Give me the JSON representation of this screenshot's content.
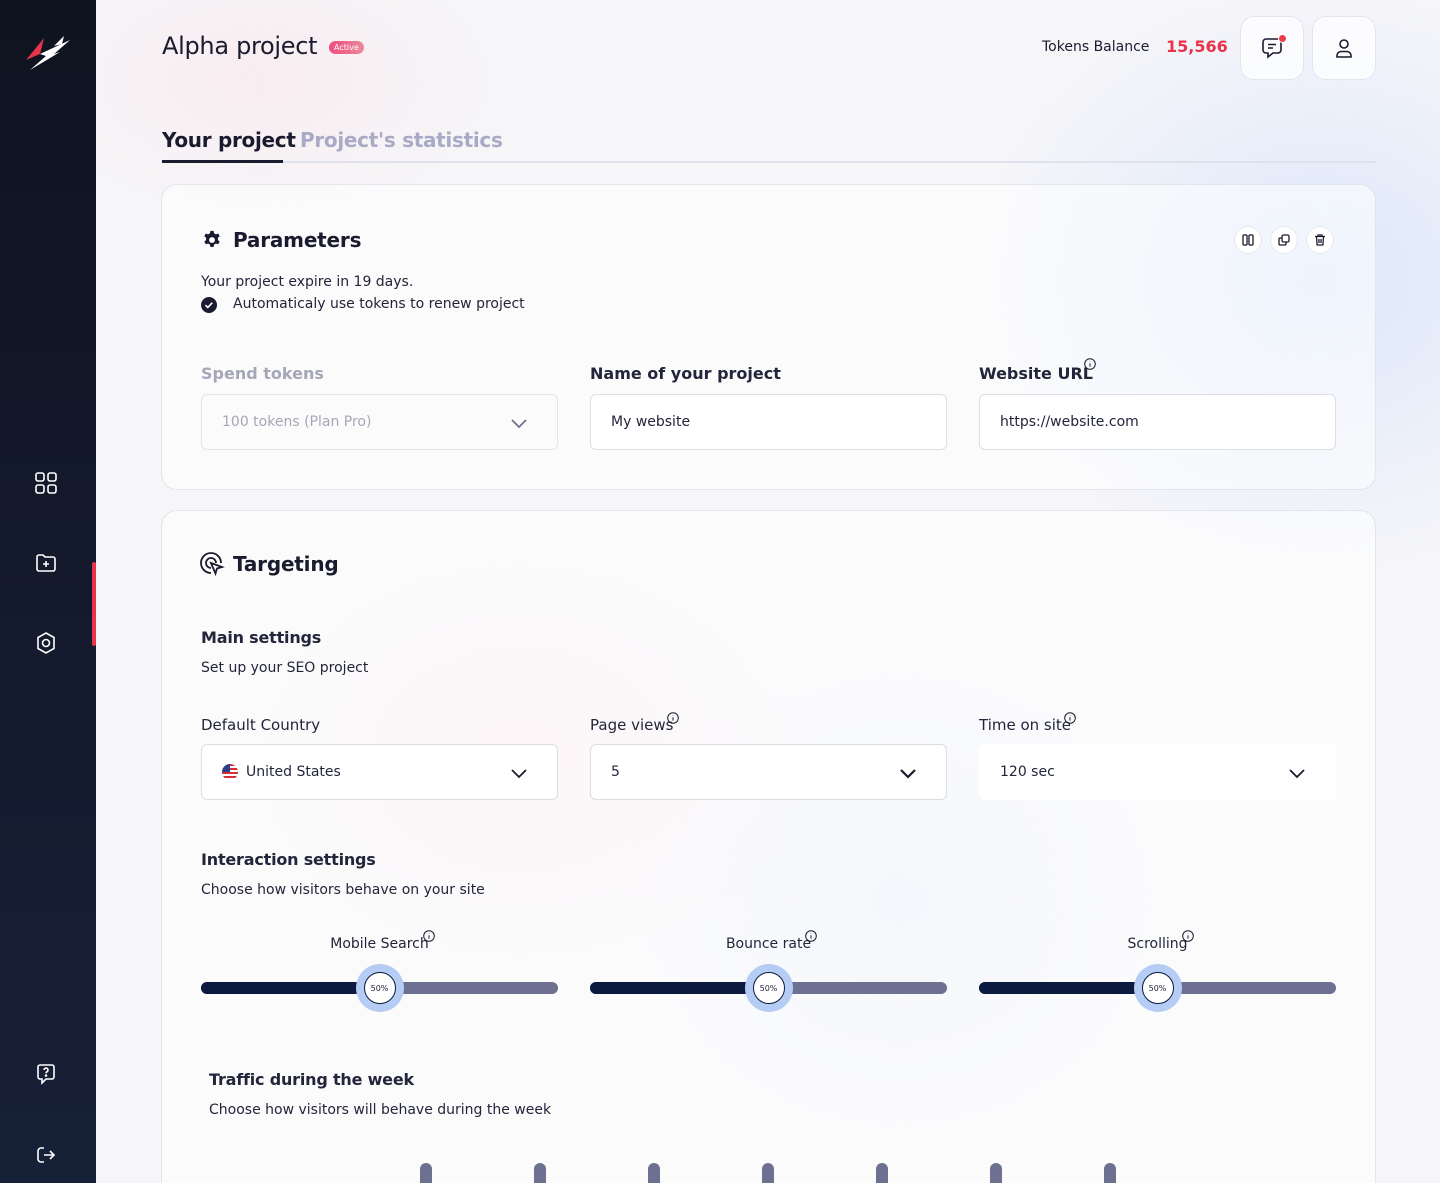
{
  "header": {
    "title": "Alpha project",
    "badge": "Active",
    "tokens_label": "Tokens Balance",
    "tokens_value": "15,566"
  },
  "tabs": [
    {
      "label": "Your project",
      "active": true
    },
    {
      "label": "Project's statistics",
      "active": false
    }
  ],
  "sidebar": {
    "items": [
      {
        "icon": "grid-icon"
      },
      {
        "icon": "folder-plus-icon"
      },
      {
        "icon": "settings-hex-icon"
      },
      {
        "icon": "help-chat-icon"
      },
      {
        "icon": "logout-icon"
      }
    ],
    "accent_color": "#e8334a"
  },
  "parameters": {
    "title": "Parameters",
    "expire_text": "Your project expire in 19 days.",
    "auto_renew_text": "Automaticaly use tokens to renew project",
    "auto_renew_checked": true,
    "spend_tokens": {
      "label": "Spend tokens",
      "value": "100 tokens (Plan Pro)"
    },
    "project_name": {
      "label": "Name of your project",
      "value": "My website"
    },
    "website_url": {
      "label": "Website URL",
      "value": "https://website.com"
    }
  },
  "targeting": {
    "title": "Targeting",
    "main_settings": {
      "title": "Main settings",
      "subtitle": "Set up your SEO project",
      "default_country": {
        "label": "Default Country",
        "value": "United States"
      },
      "page_views": {
        "label": "Page views",
        "value": "5"
      },
      "time_on_site": {
        "label": "Time on site",
        "value": "120 sec"
      }
    },
    "interaction_settings": {
      "title": "Interaction settings",
      "subtitle": "Choose how visitors behave on your site",
      "sliders": [
        {
          "label": "Mobile Search",
          "value_label": "50%",
          "fraction": 0.5
        },
        {
          "label": "Bounce rate",
          "value_label": "50%",
          "fraction": 0.5
        },
        {
          "label": "Scrolling",
          "value_label": "50%",
          "fraction": 0.5
        }
      ]
    },
    "traffic": {
      "title": "Traffic during the week",
      "subtitle": "Choose how visitors will behave during the week"
    }
  },
  "colors": {
    "accent": "#e8334a",
    "slider_fill": "#0b1a3e",
    "slider_track": "#6d7090",
    "tab_inactive": "#a9aac6"
  }
}
